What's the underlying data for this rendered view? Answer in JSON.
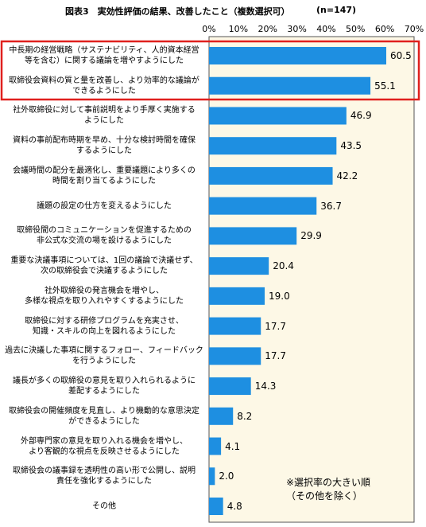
{
  "chart_data": {
    "type": "barh",
    "title": "図表3　実効性評価の結果、改善したこと（複数選択可）",
    "subtitle": "(n=147)",
    "categories": [
      "中長期の経営戦略（サステナビリティ、人的資本経営\n等を含む）に関する議論を増やすようにした",
      "取締役会資料の質と量を改善し、より効率的な議論が\nできるようにした",
      "社外取締役に対して事前説明をより手厚く実施する\nようにした",
      "資料の事前配布時期を早め、十分な検討時間を確保\nするようにした",
      "会議時間の配分を最適化し、重要議題により多くの\n時間を割り当てるようにした",
      "議題の設定の仕方を変えるようにした",
      "取締役間のコミュニケーションを促進するための\n非公式な交流の場を設けるようにした",
      "重要な決議事項については、1回の議論で決議せず、\n次の取締役会で決議するようにした",
      "社外取締役の発言機会を増やし、\n多様な視点を取り入れやすくするようにした",
      "取締役に対する研修プログラムを充実させ、\n知識・スキルの向上を図れるようにした",
      "過去に決議した事項に関するフォロー、フィードバック\nを行うようにした",
      "議長が多くの取締役の意見を取り入れられるように\n差配するようにした",
      "取締役会の開催頻度を見直し、より機動的な意思決定\nができるようにした",
      "外部専門家の意見を取り入れる機会を増やし、\nより客観的な視点を反映させるようにした",
      "取締役会の議事録を透明性の高い形で公開し、説明\n責任を強化するようにした",
      "その他"
    ],
    "values": [
      60.5,
      55.1,
      46.9,
      43.5,
      42.2,
      36.7,
      29.9,
      20.4,
      19.0,
      17.7,
      17.7,
      14.3,
      8.2,
      4.1,
      2.0,
      4.8
    ],
    "value_labels": [
      "60.5",
      "55.1",
      "46.9",
      "43.5",
      "42.2",
      "36.7",
      "29.9",
      "20.4",
      "19.0",
      "17.7",
      "17.7",
      "14.3",
      "8.2",
      "4.1",
      "2.0",
      "4.8"
    ],
    "color": "#1e8fe1",
    "xlim": [
      0,
      70
    ],
    "xticks": [
      {
        "value": 0,
        "label": "0%"
      },
      {
        "value": 10,
        "label": "10%"
      },
      {
        "value": 20,
        "label": "20%"
      },
      {
        "value": 30,
        "label": "30%"
      },
      {
        "value": 40,
        "label": "40%"
      },
      {
        "value": 50,
        "label": "50%"
      },
      {
        "value": 60,
        "label": "60%"
      },
      {
        "value": 70,
        "label": "70%"
      }
    ],
    "grid": false,
    "annotation": "※選択率の大きい順\n（その他を除く）"
  }
}
